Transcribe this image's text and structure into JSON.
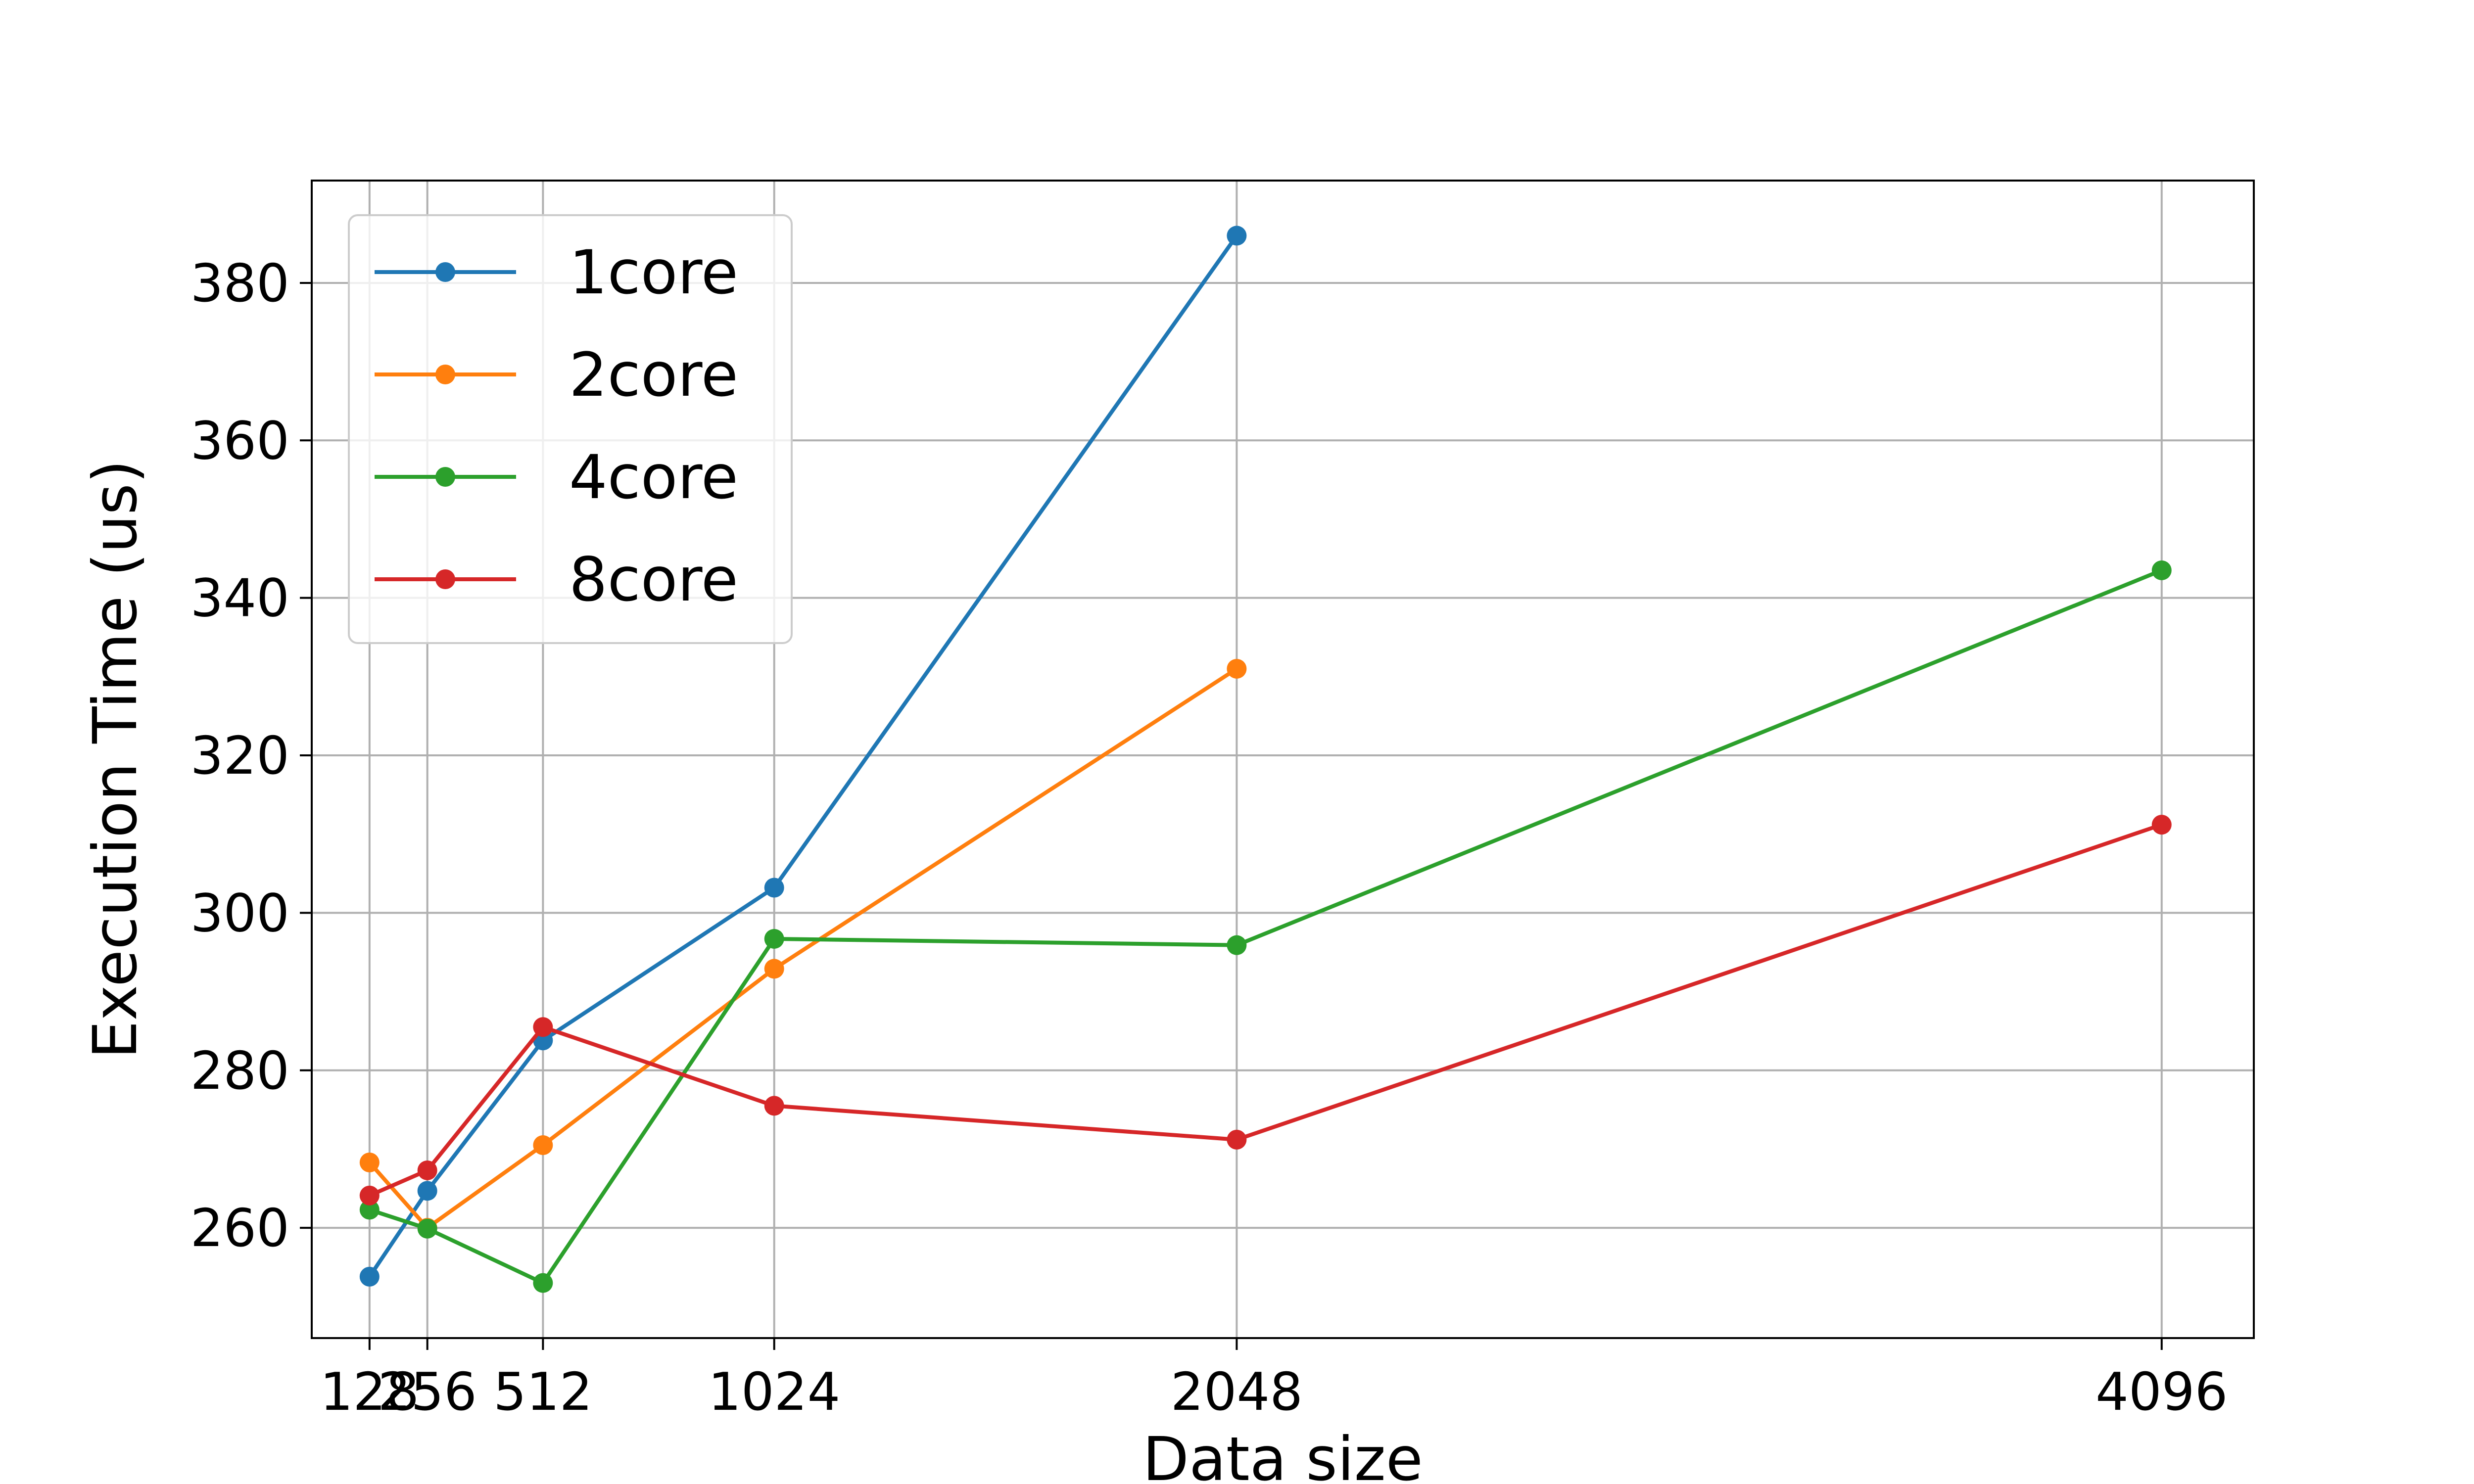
{
  "chart_data": {
    "type": "line",
    "title": "",
    "xlabel": "Data size",
    "ylabel": "Execution Time (us)",
    "x_ticks": [
      128,
      256,
      512,
      1024,
      2048,
      4096
    ],
    "x_tick_labels": [
      "128",
      "256",
      "512",
      "1024",
      "2048",
      "4096"
    ],
    "y_ticks": [
      260,
      280,
      300,
      320,
      340,
      360,
      380
    ],
    "y_tick_labels": [
      "260",
      "280",
      "300",
      "320",
      "340",
      "360",
      "380"
    ],
    "xlim": [
      0,
      4300
    ],
    "ylim": [
      246,
      393
    ],
    "grid": true,
    "legend_position": "top-left",
    "series": [
      {
        "name": "1core",
        "color": "#1f77b4",
        "x": [
          128,
          256,
          512,
          1024,
          2048
        ],
        "y": [
          253.8,
          264.7,
          283.8,
          303.2,
          386.0
        ]
      },
      {
        "name": "2core",
        "color": "#ff7f0e",
        "x": [
          128,
          256,
          512,
          1024,
          2048
        ],
        "y": [
          268.3,
          260.0,
          270.5,
          292.9,
          331.0
        ]
      },
      {
        "name": "4core",
        "color": "#2ca02c",
        "x": [
          128,
          256,
          512,
          1024,
          2048,
          4096
        ],
        "y": [
          262.3,
          259.9,
          253.0,
          296.7,
          295.9,
          343.5
        ]
      },
      {
        "name": "8core",
        "color": "#d62728",
        "x": [
          128,
          256,
          512,
          1024,
          2048,
          4096
        ],
        "y": [
          264.1,
          267.3,
          285.5,
          275.5,
          271.2,
          311.2
        ]
      }
    ]
  }
}
